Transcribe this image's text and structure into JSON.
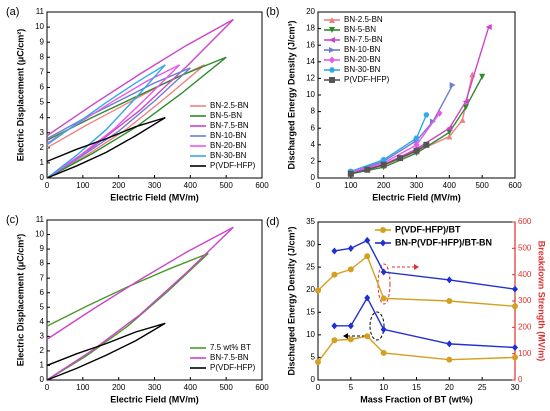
{
  "chart_data": [
    {
      "type": "line",
      "panel_label": "(a)",
      "xlabel": "Electric Field (MV/m)",
      "ylabel": "Electric Displacement (μC/cm²)",
      "xlim": [
        0,
        600
      ],
      "xticks": [
        0,
        100,
        200,
        300,
        400,
        500,
        600
      ],
      "ylim": [
        0,
        11
      ],
      "yticks": [
        0,
        1,
        2,
        3,
        4,
        5,
        6,
        7,
        8,
        9,
        10,
        11
      ],
      "legend": "lower right",
      "series": [
        {
          "name": "BN-2.5-BN",
          "color": "#f08080",
          "x": [
            0,
            110,
            220,
            330,
            440,
            330,
            220,
            110,
            0
          ],
          "values": [
            0,
            1.5,
            3.2,
            5.3,
            7.5,
            6.3,
            4.9,
            3.5,
            2.0
          ]
        },
        {
          "name": "BN-5-BN",
          "color": "#2e8b2e",
          "x": [
            0,
            125,
            250,
            375,
            500,
            375,
            250,
            125,
            0
          ],
          "values": [
            0,
            1.6,
            3.4,
            5.6,
            8,
            6.8,
            5.4,
            4.0,
            2.5
          ]
        },
        {
          "name": "BN-7.5-BN",
          "color": "#cc44cc",
          "x": [
            0,
            130,
            260,
            390,
            520,
            390,
            260,
            130,
            0
          ],
          "values": [
            0,
            2.1,
            4.5,
            7.4,
            10.5,
            8.8,
            6.9,
            4.9,
            2.8
          ]
        },
        {
          "name": "BN-10-BN",
          "color": "#6a7fd0",
          "x": [
            0,
            100,
            200,
            300,
            400,
            300,
            200,
            100,
            0
          ],
          "values": [
            0,
            1.5,
            3.1,
            5.1,
            7.3,
            6.3,
            5.1,
            3.9,
            2.6
          ]
        },
        {
          "name": "BN-20-BN",
          "color": "#ee55ee",
          "x": [
            0,
            92.5,
            185,
            277.5,
            370,
            277.5,
            185,
            92.5,
            0
          ],
          "values": [
            0,
            1.5,
            3.2,
            5.3,
            7.5,
            6.4,
            5.1,
            3.7,
            2.3
          ]
        },
        {
          "name": "BN-30-BN",
          "color": "#33a8e8",
          "x": [
            0,
            82.5,
            165,
            247.5,
            330,
            247.5,
            165,
            82.5,
            0
          ],
          "values": [
            0,
            1.5,
            3.2,
            5.3,
            7.5,
            6.3,
            5.0,
            3.6,
            2.2
          ]
        },
        {
          "name": "P(VDF-HFP)",
          "color": "#000000",
          "x": [
            0,
            82.5,
            165,
            247.5,
            330,
            247.5,
            165,
            82.5,
            0
          ],
          "values": [
            0,
            0.8,
            1.7,
            2.8,
            4,
            3.4,
            2.6,
            1.9,
            1.1
          ]
        }
      ]
    },
    {
      "type": "line",
      "panel_label": "(b)",
      "xlabel": "Electric Field (MV/m)",
      "ylabel": "Discharged Energy Density (J/cm³)",
      "xlim": [
        0,
        600
      ],
      "xticks": [
        0,
        100,
        200,
        300,
        400,
        500,
        600
      ],
      "ylim": [
        0,
        20
      ],
      "yticks": [
        0,
        2,
        4,
        6,
        8,
        10,
        12,
        14,
        16,
        18,
        20
      ],
      "legend": "upper left",
      "series": [
        {
          "name": "BN-2.5-BN",
          "color": "#f08080",
          "marker": "triangle-up",
          "x": [
            100,
            200,
            300,
            400,
            440,
            470
          ],
          "values": [
            0.6,
            1.5,
            3.2,
            5,
            7,
            12.5
          ]
        },
        {
          "name": "BN-5-BN",
          "color": "#2e8b2e",
          "marker": "triangle-down",
          "x": [
            100,
            200,
            300,
            400,
            450,
            500
          ],
          "values": [
            0.5,
            1.3,
            3,
            5.5,
            8.5,
            12.2
          ]
        },
        {
          "name": "BN-7.5-BN",
          "color": "#cc44cc",
          "marker": "triangle-left",
          "x": [
            100,
            200,
            300,
            400,
            450,
            520
          ],
          "values": [
            0.6,
            1.6,
            3.5,
            6,
            9.2,
            18.2
          ]
        },
        {
          "name": "BN-10-BN",
          "color": "#6a7fd0",
          "marker": "triangle-right",
          "x": [
            100,
            200,
            300,
            350,
            410
          ],
          "values": [
            0.7,
            2,
            4.5,
            6.8,
            11.2
          ]
        },
        {
          "name": "BN-20-BN",
          "color": "#ee55ee",
          "marker": "diamond",
          "x": [
            100,
            200,
            300,
            370
          ],
          "values": [
            0.7,
            1.8,
            4,
            7.8
          ]
        },
        {
          "name": "BN-30-BN",
          "color": "#33a8e8",
          "marker": "hexagon",
          "x": [
            100,
            200,
            300,
            330
          ],
          "values": [
            0.8,
            2.2,
            4.8,
            7.6
          ]
        },
        {
          "name": "P(VDF-HFP)",
          "color": "#555555",
          "marker": "square",
          "x": [
            100,
            150,
            200,
            250,
            300,
            330
          ],
          "values": [
            0.5,
            1,
            1.6,
            2.4,
            3.3,
            4
          ]
        }
      ]
    },
    {
      "type": "line",
      "panel_label": "(c)",
      "xlabel": "Electric Field (MV/m)",
      "ylabel": "Electric Displacement (μC/cm²)",
      "xlim": [
        0,
        600
      ],
      "xticks": [
        0,
        100,
        200,
        300,
        400,
        500,
        600
      ],
      "ylim": [
        0,
        11
      ],
      "yticks": [
        0,
        1,
        2,
        3,
        4,
        5,
        6,
        7,
        8,
        9,
        10,
        11
      ],
      "legend": "lower right",
      "series": [
        {
          "name": "7.5 wt% BT",
          "color": "#4a9a2a",
          "x": [
            0,
            112.5,
            225,
            337.5,
            450,
            337.5,
            225,
            112.5,
            0
          ],
          "values": [
            0,
            1.7,
            3.7,
            6.1,
            8.7,
            7.6,
            6.4,
            5.1,
            3.7
          ]
        },
        {
          "name": "BN-7.5-BN",
          "color": "#cc44cc",
          "x": [
            0,
            130,
            260,
            390,
            520,
            390,
            260,
            130,
            0
          ],
          "values": [
            0,
            2.1,
            4.5,
            7.4,
            10.5,
            8.8,
            6.9,
            4.9,
            2.8
          ]
        },
        {
          "name": "P(VDF-HFP)",
          "color": "#000000",
          "x": [
            0,
            82.5,
            165,
            247.5,
            330,
            247.5,
            165,
            82.5,
            0
          ],
          "values": [
            0,
            0.8,
            1.7,
            2.7,
            3.9,
            3.3,
            2.5,
            1.8,
            1.0
          ]
        }
      ]
    },
    {
      "type": "line",
      "panel_label": "(d)",
      "xlabel": "Mass Fraction of BT (wt%)",
      "ylabel": "Discharged Energy Density (J/cm³)",
      "y2label": "Breakdown Strength (MV/m)",
      "y2color": "#e03030",
      "xlim": [
        0,
        30
      ],
      "xticks": [
        0,
        5,
        10,
        15,
        20,
        25,
        30
      ],
      "ylim": [
        0,
        35
      ],
      "yticks": [
        0,
        5,
        10,
        15,
        20,
        25,
        30,
        35
      ],
      "y2lim": [
        0,
        600
      ],
      "y2ticks": [
        0,
        100,
        200,
        300,
        400,
        500,
        600
      ],
      "legend": "upper right",
      "series": [
        {
          "name": "P(VDF-HFP)/BT",
          "color": "#d4a020",
          "marker": "circle",
          "x": [
            0,
            2.5,
            5,
            7.5,
            10,
            20,
            30
          ],
          "values": [
            4,
            8.8,
            9,
            9.7,
            6,
            4.5,
            5
          ]
        },
        {
          "name": "BN-P(VDF-HFP)/BT-BN",
          "color": "#2030d0",
          "marker": "diamond",
          "x": [
            2.5,
            5,
            7.5,
            10,
            20,
            30
          ],
          "values": [
            12,
            12,
            18.2,
            11.2,
            8,
            7.2
          ]
        },
        {
          "color": "#d4a020",
          "marker": "circle",
          "axis": "y2",
          "x": [
            0,
            2.5,
            5,
            7.5,
            10,
            20,
            30
          ],
          "values": [
            340,
            400,
            420,
            470,
            310,
            300,
            280
          ]
        },
        {
          "color": "#2030d0",
          "marker": "diamond",
          "axis": "y2",
          "x": [
            2.5,
            5,
            7.5,
            10,
            20,
            30
          ],
          "values": [
            490,
            500,
            530,
            410,
            380,
            345
          ]
        }
      ]
    }
  ]
}
